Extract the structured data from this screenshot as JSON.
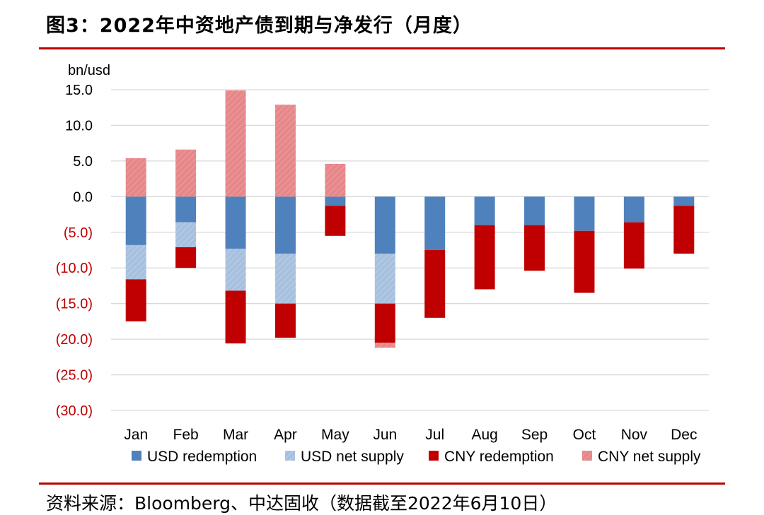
{
  "header": {
    "title": "图3：2022年中资地产债到期与净发行（月度）"
  },
  "footer": {
    "source": "资料来源：Bloomberg、中达固收（数据截至2022年6月10日）"
  },
  "chart_data": {
    "type": "bar",
    "stacked": true,
    "unit_label": "bn/usd",
    "categories": [
      "Jan",
      "Feb",
      "Mar",
      "Apr",
      "May",
      "Jun",
      "Jul",
      "Aug",
      "Sep",
      "Oct",
      "Nov",
      "Dec"
    ],
    "ylim": [
      -30,
      15
    ],
    "yticks": [
      15,
      10,
      5,
      0,
      -5,
      -10,
      -15,
      -20,
      -25,
      -30
    ],
    "ytick_labels": [
      "15.0",
      "10.0",
      "5.0",
      "0.0",
      "(5.0)",
      "(10.0)",
      "(15.0)",
      "(20.0)",
      "(25.0)",
      "(30.0)"
    ],
    "positive_color": "#000000",
    "negative_color": "#c00000",
    "grid": true,
    "legend_position": "bottom",
    "series": [
      {
        "name": "USD redemption",
        "color": "#4f81bd",
        "values": [
          -6.8,
          -3.6,
          -7.3,
          -8.0,
          -1.3,
          -8.0,
          -7.5,
          -4.0,
          -4.0,
          -4.8,
          -3.6,
          -1.3
        ]
      },
      {
        "name": "USD net supply",
        "color": "#a7c0de",
        "values": [
          -4.8,
          -3.5,
          -5.9,
          -7.0,
          0,
          -7.0,
          0,
          0,
          0,
          0,
          0,
          0
        ]
      },
      {
        "name": "CNY redemption",
        "color": "#c00000",
        "values": [
          -5.9,
          -2.9,
          -7.4,
          -4.8,
          -4.2,
          -5.5,
          -9.5,
          -9.0,
          -6.4,
          -8.7,
          -6.5,
          -6.7
        ]
      },
      {
        "name": "CNY net supply",
        "color": "#e6878a",
        "values": [
          5.4,
          6.6,
          14.9,
          12.9,
          4.6,
          -0.7,
          0,
          0,
          0,
          0,
          0,
          0
        ]
      }
    ]
  }
}
